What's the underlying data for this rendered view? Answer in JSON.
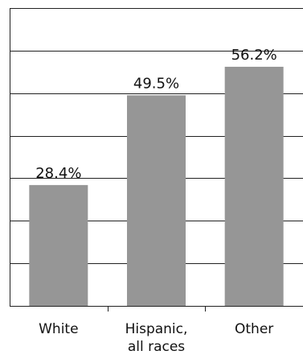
{
  "chart_data": {
    "type": "bar",
    "categories": [
      "White",
      "Hispanic,\nall races",
      "Other"
    ],
    "values": [
      28.4,
      49.5,
      56.2
    ],
    "data_labels": [
      "28.4%",
      "49.5%",
      "56.2%"
    ],
    "ylim": [
      0,
      70
    ],
    "grid": true,
    "bar_color": "#969696"
  }
}
